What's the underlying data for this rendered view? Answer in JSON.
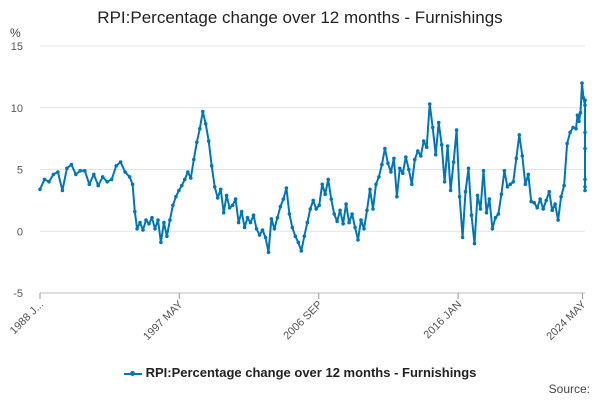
{
  "chart_data": {
    "type": "line",
    "title": "RPI:Percentage change over 12 months - Furnishings",
    "ylabel": "%",
    "ylim": [
      -5,
      15
    ],
    "yticks": [
      -5,
      0,
      5,
      10,
      15
    ],
    "xlim": [
      1988.0,
      2024.5
    ],
    "xticks": [
      {
        "x": 1988.0,
        "label": "1988 J..."
      },
      {
        "x": 1997.33,
        "label": "1997 MAY"
      },
      {
        "x": 2006.67,
        "label": "2006 SEP"
      },
      {
        "x": 2016.0,
        "label": "2016 JAN"
      },
      {
        "x": 2024.33,
        "label": "2024 MAY"
      }
    ],
    "grid": true,
    "legend_position": "bottom",
    "series": [
      {
        "name": "RPI:Percentage change over 12 months - Furnishings",
        "color": "#0076b6",
        "points": [
          [
            1988.0,
            3.4
          ],
          [
            1988.3,
            4.2
          ],
          [
            1988.6,
            4.0
          ],
          [
            1988.9,
            4.6
          ],
          [
            1989.2,
            4.8
          ],
          [
            1989.5,
            3.3
          ],
          [
            1989.8,
            5.1
          ],
          [
            1990.1,
            5.4
          ],
          [
            1990.4,
            4.6
          ],
          [
            1990.7,
            4.9
          ],
          [
            1991.0,
            4.9
          ],
          [
            1991.3,
            3.8
          ],
          [
            1991.6,
            4.6
          ],
          [
            1991.9,
            3.7
          ],
          [
            1992.2,
            4.4
          ],
          [
            1992.5,
            4.0
          ],
          [
            1992.8,
            4.2
          ],
          [
            1993.1,
            5.3
          ],
          [
            1993.4,
            5.6
          ],
          [
            1993.7,
            4.8
          ],
          [
            1994.0,
            4.4
          ],
          [
            1994.2,
            3.8
          ],
          [
            1994.35,
            1.6
          ],
          [
            1994.5,
            0.2
          ],
          [
            1994.7,
            0.7
          ],
          [
            1994.9,
            0.1
          ],
          [
            1995.1,
            0.9
          ],
          [
            1995.3,
            0.6
          ],
          [
            1995.5,
            1.1
          ],
          [
            1995.7,
            0.2
          ],
          [
            1995.9,
            0.9
          ],
          [
            1996.1,
            -0.9
          ],
          [
            1996.3,
            0.7
          ],
          [
            1996.5,
            -0.4
          ],
          [
            1996.7,
            0.9
          ],
          [
            1996.9,
            2.1
          ],
          [
            1997.1,
            2.8
          ],
          [
            1997.3,
            3.3
          ],
          [
            1997.5,
            3.7
          ],
          [
            1997.7,
            4.2
          ],
          [
            1997.9,
            4.8
          ],
          [
            1998.1,
            4.3
          ],
          [
            1998.3,
            5.8
          ],
          [
            1998.5,
            7.2
          ],
          [
            1998.7,
            8.3
          ],
          [
            1998.9,
            9.7
          ],
          [
            1999.1,
            8.7
          ],
          [
            1999.3,
            7.3
          ],
          [
            1999.5,
            5.3
          ],
          [
            1999.7,
            3.6
          ],
          [
            1999.9,
            2.7
          ],
          [
            2000.1,
            3.4
          ],
          [
            2000.3,
            1.5
          ],
          [
            2000.5,
            2.9
          ],
          [
            2000.7,
            1.9
          ],
          [
            2000.9,
            2.1
          ],
          [
            2001.1,
            2.6
          ],
          [
            2001.3,
            0.7
          ],
          [
            2001.5,
            1.6
          ],
          [
            2001.7,
            0.3
          ],
          [
            2001.9,
            1.1
          ],
          [
            2002.1,
            0.7
          ],
          [
            2002.3,
            1.3
          ],
          [
            2002.5,
            0.2
          ],
          [
            2002.7,
            -0.3
          ],
          [
            2002.9,
            0.1
          ],
          [
            2003.1,
            -0.5
          ],
          [
            2003.3,
            -1.7
          ],
          [
            2003.5,
            1.0
          ],
          [
            2003.7,
            0.2
          ],
          [
            2003.9,
            1.1
          ],
          [
            2004.1,
            2.0
          ],
          [
            2004.3,
            2.6
          ],
          [
            2004.5,
            3.5
          ],
          [
            2004.7,
            1.4
          ],
          [
            2004.9,
            0.3
          ],
          [
            2005.1,
            -0.4
          ],
          [
            2005.3,
            -0.9
          ],
          [
            2005.5,
            -1.6
          ],
          [
            2005.7,
            -0.4
          ],
          [
            2005.9,
            0.7
          ],
          [
            2006.1,
            1.8
          ],
          [
            2006.3,
            2.5
          ],
          [
            2006.5,
            1.8
          ],
          [
            2006.7,
            2.1
          ],
          [
            2006.9,
            3.8
          ],
          [
            2007.1,
            3.0
          ],
          [
            2007.3,
            4.2
          ],
          [
            2007.5,
            2.6
          ],
          [
            2007.7,
            1.4
          ],
          [
            2007.9,
            0.8
          ],
          [
            2008.1,
            1.7
          ],
          [
            2008.3,
            0.6
          ],
          [
            2008.5,
            2.2
          ],
          [
            2008.7,
            0.7
          ],
          [
            2008.9,
            1.4
          ],
          [
            2009.1,
            0.3
          ],
          [
            2009.3,
            -0.7
          ],
          [
            2009.5,
            0.9
          ],
          [
            2009.7,
            0.2
          ],
          [
            2009.9,
            1.7
          ],
          [
            2010.1,
            3.4
          ],
          [
            2010.3,
            1.8
          ],
          [
            2010.5,
            3.8
          ],
          [
            2010.7,
            4.4
          ],
          [
            2010.9,
            5.4
          ],
          [
            2011.1,
            6.7
          ],
          [
            2011.3,
            5.5
          ],
          [
            2011.5,
            4.8
          ],
          [
            2011.7,
            5.9
          ],
          [
            2011.9,
            2.8
          ],
          [
            2012.1,
            5.1
          ],
          [
            2012.3,
            4.7
          ],
          [
            2012.5,
            6.0
          ],
          [
            2012.7,
            5.0
          ],
          [
            2012.9,
            3.8
          ],
          [
            2013.1,
            5.8
          ],
          [
            2013.3,
            6.5
          ],
          [
            2013.5,
            6.1
          ],
          [
            2013.7,
            7.3
          ],
          [
            2013.9,
            6.8
          ],
          [
            2014.1,
            10.3
          ],
          [
            2014.3,
            8.4
          ],
          [
            2014.5,
            6.2
          ],
          [
            2014.7,
            8.8
          ],
          [
            2014.9,
            7.0
          ],
          [
            2015.1,
            4.0
          ],
          [
            2015.3,
            6.9
          ],
          [
            2015.5,
            3.3
          ],
          [
            2015.7,
            5.6
          ],
          [
            2015.9,
            8.2
          ],
          [
            2016.1,
            2.8
          ],
          [
            2016.3,
            -0.5
          ],
          [
            2016.5,
            3.2
          ],
          [
            2016.7,
            5.1
          ],
          [
            2016.9,
            1.3
          ],
          [
            2017.1,
            -1.0
          ],
          [
            2017.3,
            2.9
          ],
          [
            2017.5,
            1.8
          ],
          [
            2017.7,
            4.9
          ],
          [
            2017.9,
            1.5
          ],
          [
            2018.1,
            2.6
          ],
          [
            2018.3,
            0.2
          ],
          [
            2018.5,
            1.1
          ],
          [
            2018.7,
            1.4
          ],
          [
            2018.9,
            3.0
          ],
          [
            2019.1,
            4.9
          ],
          [
            2019.3,
            3.6
          ],
          [
            2019.5,
            3.8
          ],
          [
            2019.7,
            4.0
          ],
          [
            2019.9,
            5.9
          ],
          [
            2020.1,
            7.8
          ],
          [
            2020.3,
            6.1
          ],
          [
            2020.5,
            3.8
          ],
          [
            2020.7,
            4.6
          ],
          [
            2020.9,
            2.4
          ],
          [
            2021.1,
            2.3
          ],
          [
            2021.3,
            1.9
          ],
          [
            2021.5,
            2.6
          ],
          [
            2021.7,
            1.8
          ],
          [
            2021.9,
            2.5
          ],
          [
            2022.1,
            3.2
          ],
          [
            2022.3,
            1.7
          ],
          [
            2022.5,
            2.2
          ],
          [
            2022.7,
            0.9
          ],
          [
            2022.9,
            2.8
          ],
          [
            2023.1,
            3.7
          ],
          [
            2023.3,
            7.1
          ],
          [
            2023.5,
            8.0
          ],
          [
            2023.7,
            8.4
          ],
          [
            2023.9,
            8.3
          ],
          [
            2024.0,
            9.4
          ],
          [
            2024.1,
            8.9
          ],
          [
            2024.2,
            9.6
          ],
          [
            2024.3,
            12.0
          ],
          [
            2024.4,
            10.8
          ],
          [
            2024.5,
            10.2
          ],
          [
            2024.6,
            10.6
          ],
          [
            2024.7,
            8.0
          ],
          [
            2024.8,
            6.7
          ],
          [
            2024.9,
            4.2
          ],
          [
            2025.0,
            3.6
          ],
          [
            2025.1,
            3.3
          ]
        ]
      }
    ]
  },
  "legend": {
    "label": "RPI:Percentage change over 12 months - Furnishings"
  },
  "source": {
    "label": "Source:"
  }
}
